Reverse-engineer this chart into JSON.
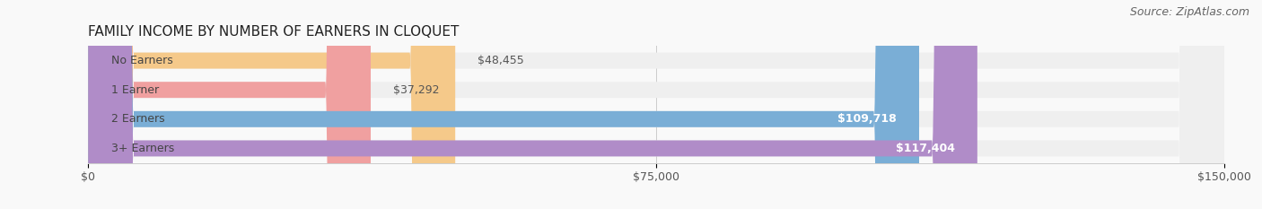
{
  "title": "FAMILY INCOME BY NUMBER OF EARNERS IN CLOQUET",
  "source": "Source: ZipAtlas.com",
  "categories": [
    "No Earners",
    "1 Earner",
    "2 Earners",
    "3+ Earners"
  ],
  "values": [
    48455,
    37292,
    109718,
    117404
  ],
  "labels": [
    "$48,455",
    "$37,292",
    "$109,718",
    "$117,404"
  ],
  "bar_colors": [
    "#f5c98a",
    "#f0a0a0",
    "#7aaed6",
    "#b08cc8"
  ],
  "bar_bg_color": "#efefef",
  "xlim": [
    0,
    150000
  ],
  "xticks": [
    0,
    75000,
    150000
  ],
  "xticklabels": [
    "$0",
    "$75,000",
    "$150,000"
  ],
  "title_fontsize": 11,
  "source_fontsize": 9,
  "label_fontsize": 9,
  "bar_height": 0.55,
  "background_color": "#f9f9f9"
}
